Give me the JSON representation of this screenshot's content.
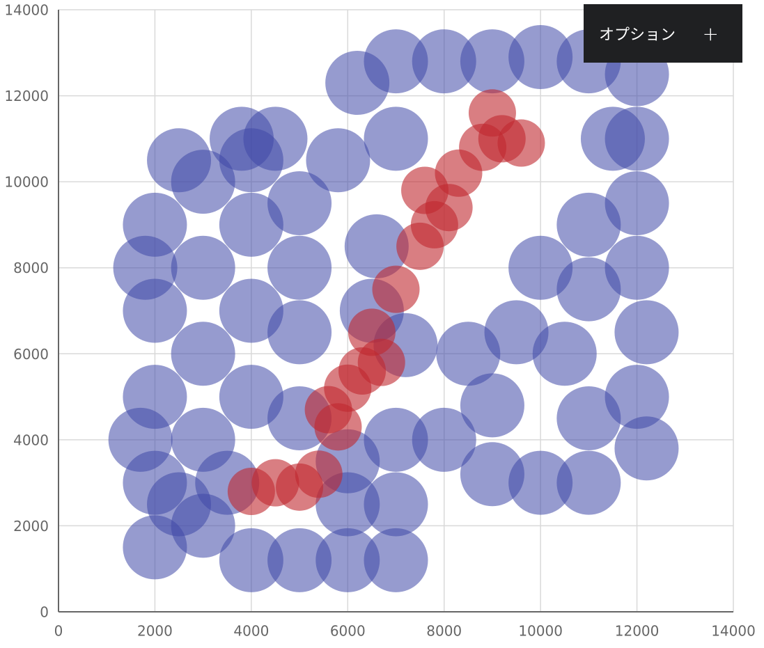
{
  "chart_data": {
    "type": "scatter",
    "xlim": [
      0,
      14000
    ],
    "xticks": [
      0,
      2000,
      4000,
      6000,
      8000,
      10000,
      12000,
      14000
    ],
    "ylim": [
      0,
      14000
    ],
    "yticks": [
      0,
      2000,
      4000,
      6000,
      8000,
      10000,
      12000,
      14000
    ],
    "grid": true,
    "series": [
      {
        "color": "#3f48a8",
        "x": [
          2000,
          2000,
          2000,
          2000,
          2000,
          2500,
          3000,
          3000,
          3000,
          3000,
          3000,
          3800,
          4000,
          4000,
          4000,
          4000,
          4000,
          5000,
          5000,
          5000,
          5000,
          5000,
          6000,
          6000,
          6000,
          7000,
          7000,
          6500,
          5800,
          6200,
          7000,
          7000,
          8000,
          9000,
          10000,
          11000,
          12000,
          12000,
          12000,
          12000,
          12200,
          12000,
          12200,
          11000,
          10000,
          9000,
          8000,
          11000,
          10500,
          11000,
          11000,
          11500,
          10000,
          9500,
          8500,
          7200,
          6600,
          7000,
          4500,
          1700,
          1800,
          2500,
          3500,
          9000
        ],
        "y": [
          1500,
          3000,
          5000,
          7000,
          9000,
          10500,
          2000,
          4000,
          6000,
          8000,
          10000,
          11000,
          1200,
          5000,
          7000,
          9000,
          10500,
          1200,
          4500,
          6500,
          8000,
          9500,
          1200,
          2500,
          3500,
          1200,
          2500,
          7000,
          10500,
          12300,
          12800,
          11000,
          12800,
          12800,
          12900,
          12800,
          12500,
          11000,
          9500,
          8000,
          6500,
          5000,
          3800,
          3000,
          3000,
          3200,
          4000,
          4500,
          6000,
          7500,
          9000,
          11000,
          8000,
          6500,
          6000,
          6200,
          8500,
          4000,
          11000,
          4000,
          8000,
          2500,
          3000,
          4800
        ]
      },
      {
        "color": "#c0282e",
        "x": [
          4500,
          5000,
          5400,
          5600,
          6000,
          6300,
          5800,
          6500,
          7000,
          7500,
          7800,
          8100,
          7600,
          8300,
          8800,
          9200,
          9600,
          9000,
          4000,
          6700
        ],
        "y": [
          3000,
          2900,
          3200,
          4700,
          5200,
          5600,
          4300,
          6500,
          7500,
          8500,
          9000,
          9400,
          9800,
          10200,
          10800,
          11000,
          10900,
          11600,
          2800,
          5800
        ]
      }
    ]
  },
  "options_button": {
    "label": "オプション",
    "icon": "+"
  }
}
